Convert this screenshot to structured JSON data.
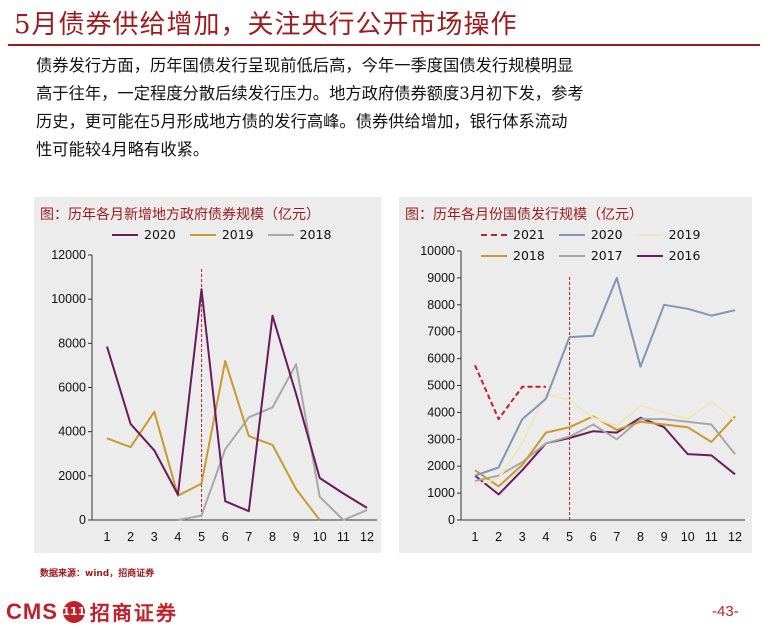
{
  "header": {
    "title": "5月债券供给增加，关注央行公开市场操作",
    "paragraph_lines": [
      "债券发行方面，历年国债发行呈现前低后高，今年一季度国债发行规模明显",
      "高于往年，一定程度分散后续发行压力。地方政府债券额度3月初下发，参考",
      "历史，更可能在5月形成地方债的发行高峰。债券供给增加，银行体系流动",
      "性可能较4月略有收紧。"
    ]
  },
  "colors": {
    "brand": "#9b1b1f",
    "panel_bg": "#ececec",
    "s2021": "#c0202a",
    "s2020_left": "#6b1a5e",
    "s2020_right": "#8096b4",
    "s2019_left": "#c89b2e",
    "s2019_right": "#efe6bd",
    "s2018_left": "#a8a8a8",
    "s2018_right": "#c89b2e",
    "s2017": "#a8a8a8",
    "s2016": "#6b1a5e",
    "marker_line": "#c0202a"
  },
  "chart_data": [
    {
      "type": "line",
      "title": "图：历年各月新增地方政府债券规模（亿元）",
      "x": [
        "1",
        "2",
        "3",
        "4",
        "5",
        "6",
        "7",
        "8",
        "9",
        "10",
        "11",
        "12"
      ],
      "ylim": [
        0,
        12000
      ],
      "yticks": [
        "0",
        "2000",
        "4000",
        "6000",
        "8000",
        "10000",
        "12000"
      ],
      "grid": false,
      "legend": "top",
      "marker_x": "5",
      "series": [
        {
          "name": "2020",
          "color_key": "s2020_left",
          "dashed": false,
          "values": [
            7850,
            4350,
            3150,
            1150,
            10450,
            850,
            400,
            9250,
            5700,
            1900,
            1200,
            550
          ]
        },
        {
          "name": "2019",
          "color_key": "s2019_left",
          "dashed": false,
          "values": [
            3700,
            3300,
            4900,
            1100,
            1650,
            7200,
            3800,
            3400,
            1400,
            0,
            null,
            200
          ]
        },
        {
          "name": "2018",
          "color_key": "s2018_left",
          "dashed": false,
          "values": [
            null,
            null,
            null,
            0,
            200,
            3200,
            4650,
            5100,
            7050,
            1050,
            0,
            450
          ]
        }
      ]
    },
    {
      "type": "line",
      "title": "图：历年各月份国债发行规模（亿元）",
      "x": [
        "1",
        "2",
        "3",
        "4",
        "5",
        "6",
        "7",
        "8",
        "9",
        "10",
        "11",
        "12"
      ],
      "ylim": [
        0,
        10000
      ],
      "yticks": [
        "0",
        "1000",
        "2000",
        "3000",
        "4000",
        "5000",
        "6000",
        "7000",
        "8000",
        "9000",
        "10000"
      ],
      "grid": false,
      "legend": "top",
      "marker_x": "5",
      "series": [
        {
          "name": "2021",
          "color_key": "s2021",
          "dashed": true,
          "values": [
            5750,
            3750,
            4950,
            4950,
            null,
            null,
            null,
            null,
            null,
            null,
            null,
            null
          ]
        },
        {
          "name": "2020",
          "color_key": "s2020_right",
          "dashed": false,
          "values": [
            1650,
            1950,
            3750,
            4500,
            6800,
            6850,
            9000,
            5700,
            8000,
            7850,
            7600,
            7800
          ]
        },
        {
          "name": "2019",
          "color_key": "s2019_right",
          "dashed": false,
          "values": [
            1300,
            1550,
            2850,
            4700,
            4450,
            3800,
            3500,
            4250,
            4000,
            3750,
            4400,
            3700
          ]
        },
        {
          "name": "2018",
          "color_key": "s2018_right",
          "dashed": false,
          "values": [
            1850,
            1250,
            2050,
            3250,
            3450,
            3850,
            3350,
            3650,
            3550,
            3450,
            2900,
            3850
          ]
        },
        {
          "name": "2017",
          "color_key": "s2017",
          "dashed": false,
          "values": [
            1450,
            1650,
            2150,
            2850,
            3100,
            3550,
            3000,
            3750,
            3750,
            3650,
            3550,
            2450
          ]
        },
        {
          "name": "2016",
          "color_key": "s2016",
          "dashed": false,
          "values": [
            1650,
            950,
            1850,
            2850,
            3050,
            3300,
            3250,
            3800,
            3450,
            2450,
            2400,
            1700
          ]
        }
      ]
    }
  ],
  "footer": {
    "source": "数据来源：wind，招商证券",
    "logo_text": "CMS",
    "logo_badge": "111",
    "logo_cn": "招商证券",
    "page_number": "-43-"
  }
}
